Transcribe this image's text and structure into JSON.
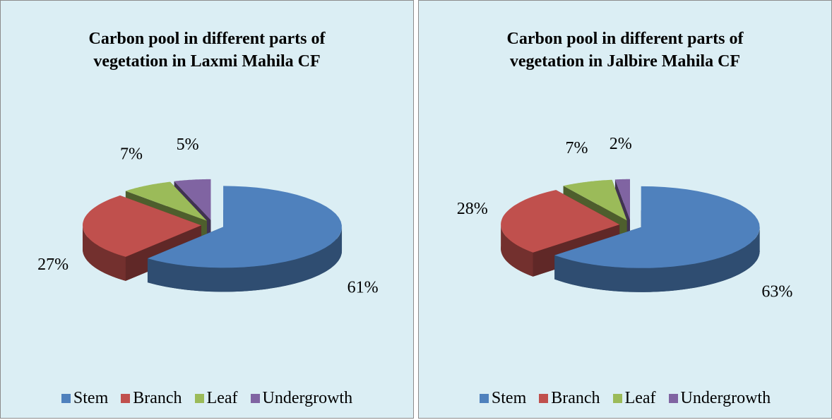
{
  "chart_data": [
    {
      "type": "pie",
      "title": "Carbon pool in different parts of vegetation in Laxmi Mahila CF",
      "categories": [
        "Stem",
        "Branch",
        "Leaf",
        "Undergrowth"
      ],
      "values": [
        61,
        27,
        7,
        5
      ],
      "value_labels": [
        "61%",
        "27%",
        "7%",
        "5%"
      ],
      "colors": [
        "#4f81bd",
        "#c0504d",
        "#9bbb59",
        "#8064a2"
      ],
      "legend": "bottom"
    },
    {
      "type": "pie",
      "title": "Carbon pool in different parts of vegetation in Jalbire Mahila CF",
      "categories": [
        "Stem",
        "Branch",
        "Leaf",
        "Undergrowth"
      ],
      "values": [
        63,
        28,
        7,
        2
      ],
      "value_labels": [
        "63%",
        "28%",
        "7%",
        "2%"
      ],
      "colors": [
        "#4f81bd",
        "#c0504d",
        "#9bbb59",
        "#8064a2"
      ],
      "legend": "bottom"
    }
  ]
}
